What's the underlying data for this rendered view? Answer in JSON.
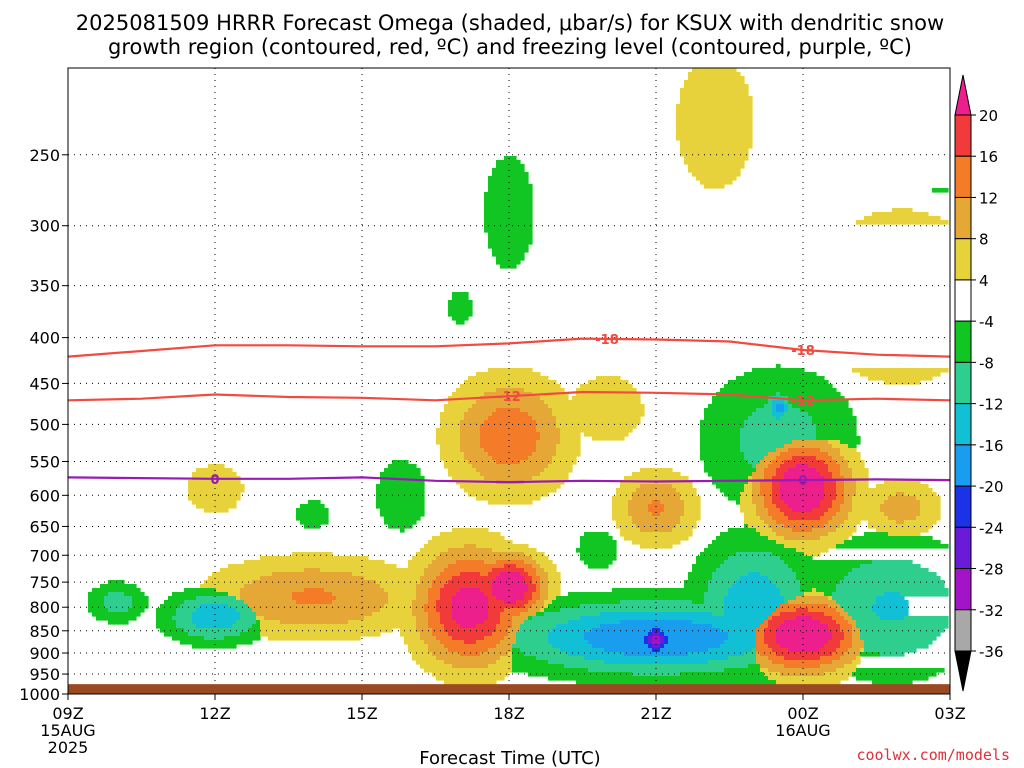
{
  "title": {
    "line1": "2025081509 HRRR Forecast Omega (shaded, μbar/s) for KSUX with dendritic snow",
    "line2": "growth region (contoured, red, ºC) and freezing level (contoured, purple, ºC)"
  },
  "credit": "coolwx.com/models",
  "chart_data": {
    "type": "heatmap",
    "title": "2025081509 HRRR Forecast Omega (shaded, μbar/s) for KSUX with dendritic snow growth region (contoured, red, ºC) and freezing level (contoured, purple, ºC)",
    "xlabel": "Forecast Time (UTC)",
    "ylabel": "",
    "x_ticks": [
      {
        "hour": 0,
        "label": "09Z",
        "sub": [
          "15AUG",
          "2025"
        ]
      },
      {
        "hour": 3,
        "label": "12Z",
        "sub": []
      },
      {
        "hour": 6,
        "label": "15Z",
        "sub": []
      },
      {
        "hour": 9,
        "label": "18Z",
        "sub": []
      },
      {
        "hour": 12,
        "label": "21Z",
        "sub": []
      },
      {
        "hour": 15,
        "label": "00Z",
        "sub": [
          "16AUG"
        ]
      },
      {
        "hour": 18,
        "label": "03Z",
        "sub": []
      }
    ],
    "xlim": [
      0,
      18
    ],
    "y_scale": "log",
    "y_ticks": [
      250,
      300,
      350,
      400,
      450,
      500,
      550,
      600,
      650,
      700,
      750,
      800,
      850,
      900,
      950,
      1000
    ],
    "ylim": [
      1000,
      200
    ],
    "ground_pressure": 975,
    "colorbar": {
      "labels": [
        "20",
        "16",
        "12",
        "8",
        "4",
        "-4",
        "-8",
        "-12",
        "-16",
        "-20",
        "-24",
        "-28",
        "-32",
        "-36"
      ],
      "colors": [
        "#ec1f8c",
        "#f33a3a",
        "#f47c28",
        "#e5a836",
        "#e8d23b",
        "#ffffff",
        "#11c623",
        "#2ecf8e",
        "#11c0d4",
        "#199dee",
        "#1b32e8",
        "#6a1bd8",
        "#a314c8",
        "#a8a8a8"
      ],
      "extend_top_color": "#ec1f8c",
      "extend_bottom_color": "#000000"
    },
    "contour_dgz": {
      "color": "#f24a40",
      "levels": [
        {
          "label": "-18",
          "label_hours": [
            11,
            15
          ],
          "points": [
            [
              0,
              420
            ],
            [
              1.5,
              414
            ],
            [
              3,
              408
            ],
            [
              4.5,
              408
            ],
            [
              6,
              409
            ],
            [
              7.5,
              409
            ],
            [
              9,
              406
            ],
            [
              10.5,
              401
            ],
            [
              12,
              402
            ],
            [
              13.5,
              404
            ],
            [
              15,
              413
            ],
            [
              16.5,
              418
            ],
            [
              18,
              420
            ]
          ]
        },
        {
          "label": "-12",
          "label_hours": [
            9,
            15
          ],
          "points": [
            [
              0,
              470
            ],
            [
              1.5,
              468
            ],
            [
              3,
              463
            ],
            [
              4.5,
              466
            ],
            [
              6,
              467
            ],
            [
              7.5,
              470
            ],
            [
              9,
              465
            ],
            [
              10.5,
              460
            ],
            [
              12,
              461
            ],
            [
              13.5,
              463
            ],
            [
              15,
              470
            ],
            [
              16.5,
              468
            ],
            [
              18,
              470
            ]
          ]
        }
      ]
    },
    "contour_freezing": {
      "color": "#9a1ab8",
      "level": {
        "label": "0",
        "label_hours": [
          3,
          15
        ],
        "points": [
          [
            0,
            573
          ],
          [
            1.5,
            574
          ],
          [
            3,
            575
          ],
          [
            4.5,
            575
          ],
          [
            6,
            573
          ],
          [
            7.5,
            578
          ],
          [
            9,
            580
          ],
          [
            10.5,
            578
          ],
          [
            12,
            579
          ],
          [
            13.5,
            578
          ],
          [
            15,
            577
          ],
          [
            16.5,
            576
          ],
          [
            18,
            577
          ]
        ]
      }
    },
    "features": [
      {
        "t": 1.0,
        "p": 790,
        "dt": 0.45,
        "dp": 0.04,
        "omega": -8
      },
      {
        "t": 3.0,
        "p": 820,
        "dt": 0.75,
        "dp": 0.05,
        "omega": -12
      },
      {
        "t": 3.0,
        "p": 590,
        "dt": 0.5,
        "dp": 0.055,
        "omega": 6
      },
      {
        "t": 5.0,
        "p": 780,
        "dt": 1.6,
        "dp": 0.075,
        "omega": 10
      },
      {
        "t": 5.0,
        "p": 630,
        "dt": 0.3,
        "dp": 0.03,
        "omega": -6
      },
      {
        "t": 6.8,
        "p": 600,
        "dt": 0.45,
        "dp": 0.08,
        "omega": -6
      },
      {
        "t": 8.2,
        "p": 800,
        "dt": 0.8,
        "dp": 0.11,
        "omega": 18
      },
      {
        "t": 9.0,
        "p": 760,
        "dt": 0.55,
        "dp": 0.06,
        "omega": 20
      },
      {
        "t": 8.0,
        "p": 370,
        "dt": 0.2,
        "dp": 0.04,
        "omega": -6
      },
      {
        "t": 9.0,
        "p": 290,
        "dt": 0.45,
        "dp": 0.13,
        "omega": -6
      },
      {
        "t": 9.0,
        "p": 515,
        "dt": 0.9,
        "dp": 0.11,
        "omega": 12
      },
      {
        "t": 11.0,
        "p": 480,
        "dt": 0.65,
        "dp": 0.075,
        "omega": 6
      },
      {
        "t": 12.0,
        "p": 620,
        "dt": 0.6,
        "dp": 0.07,
        "omega": 10
      },
      {
        "t": 10.8,
        "p": 690,
        "dt": 0.35,
        "dp": 0.045,
        "omega": -6
      },
      {
        "t": 12.0,
        "p": 865,
        "dt": 2.2,
        "dp": 0.07,
        "omega": -16
      },
      {
        "t": 12.0,
        "p": 870,
        "dt": 0.25,
        "dp": 0.03,
        "omega": -24
      },
      {
        "t": 13.2,
        "p": 230,
        "dt": 0.7,
        "dp": 0.15,
        "omega": 6
      },
      {
        "t": 14.5,
        "p": 520,
        "dt": 1.2,
        "dp": 0.14,
        "omega": -8
      },
      {
        "t": 14.5,
        "p": 480,
        "dt": 0.2,
        "dp": 0.03,
        "omega": -14
      },
      {
        "t": 15.0,
        "p": 590,
        "dt": 0.7,
        "dp": 0.09,
        "omega": 20
      },
      {
        "t": 15.0,
        "p": 860,
        "dt": 0.85,
        "dp": 0.07,
        "omega": 20
      },
      {
        "t": 14.0,
        "p": 800,
        "dt": 0.9,
        "dp": 0.13,
        "omega": -12
      },
      {
        "t": 16.8,
        "p": 800,
        "dt": 1.3,
        "dp": 0.13,
        "omega": -10
      },
      {
        "t": 17.0,
        "p": 360,
        "dt": 1.6,
        "dp": 0.2,
        "omega": 6
      },
      {
        "t": 17.8,
        "p": 240,
        "dt": 0.8,
        "dp": 0.12,
        "omega": -6
      },
      {
        "t": 17.0,
        "p": 620,
        "dt": 0.6,
        "dp": 0.055,
        "omega": 8
      }
    ]
  }
}
